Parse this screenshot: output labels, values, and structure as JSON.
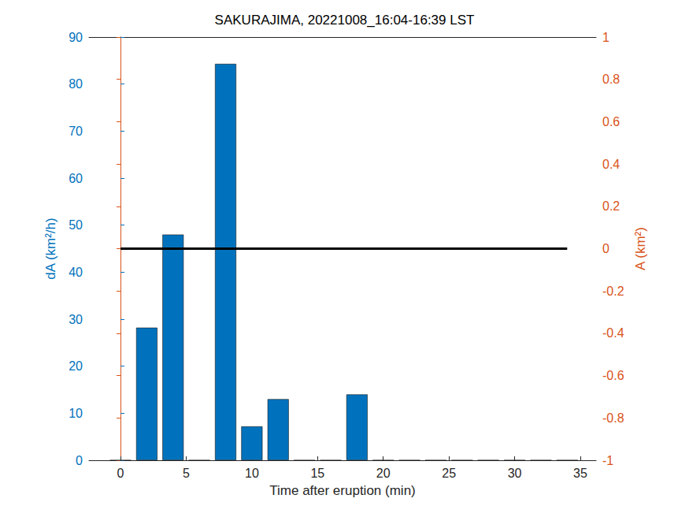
{
  "chart_data": {
    "type": "bar",
    "title": "SAKURAJIMA, 20221008_16:04-16:39 LST",
    "x_label": "Time after eruption (min)",
    "y_label": "dA (km²/h)",
    "y2_label": "A (km²)",
    "x": [
      0,
      2,
      4,
      6,
      8,
      10,
      12,
      14,
      16,
      18,
      20,
      22,
      24,
      26,
      28,
      30,
      32,
      34
    ],
    "series": [
      {
        "name": "dA",
        "type": "bar",
        "color": "#0072BD",
        "values": [
          0,
          28.2,
          48,
          0,
          84.3,
          7.2,
          13,
          0,
          0,
          14,
          0,
          0,
          0,
          0,
          0,
          0,
          0,
          0
        ]
      },
      {
        "name": "A",
        "type": "line",
        "color": "#000000",
        "axis": "y2",
        "marker": "none",
        "line_style": "solid",
        "values": [
          0,
          0,
          0,
          0,
          0,
          0,
          0,
          0,
          0,
          0,
          0,
          0,
          0,
          0,
          0,
          0,
          0,
          0
        ]
      }
    ],
    "xlim": [
      -2.4,
      36.2
    ],
    "xticks": [
      0,
      5,
      10,
      15,
      20,
      25,
      30,
      35
    ],
    "ylim": [
      0,
      90
    ],
    "yticks": [
      0,
      10,
      20,
      30,
      40,
      50,
      60,
      70,
      80,
      90
    ],
    "y2lim": [
      -1,
      1
    ],
    "y2ticks": [
      -1,
      -0.8,
      -0.6,
      -0.4,
      -0.2,
      0,
      0.2,
      0.4,
      0.6,
      0.8,
      1
    ],
    "grid": false,
    "y_color": "#0072BD",
    "y2_color": "#D95319"
  }
}
